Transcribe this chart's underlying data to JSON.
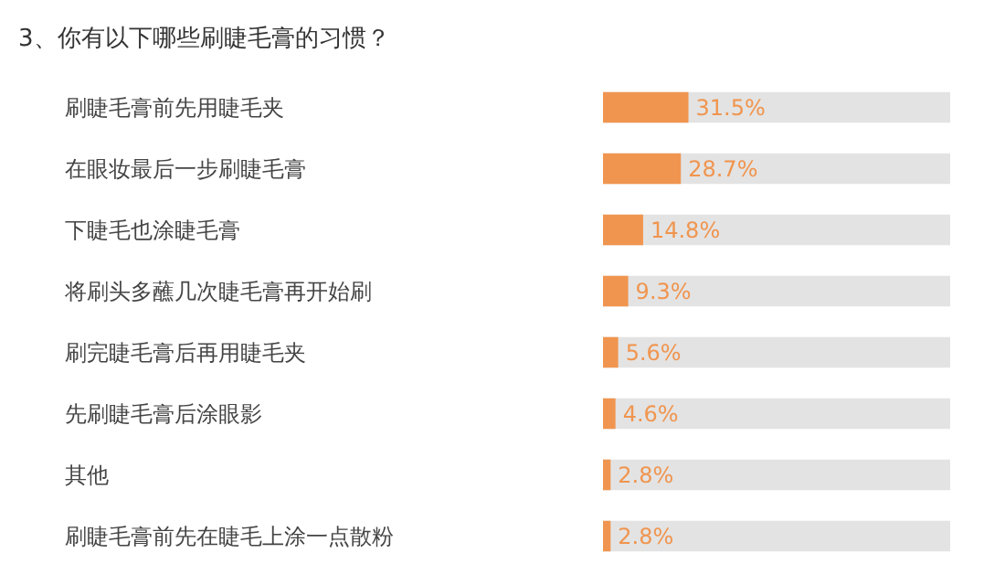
{
  "chart_data": {
    "type": "bar",
    "orientation": "horizontal",
    "title": "3、你有以下哪些刷睫毛膏的习惯？",
    "categories": [
      "刷睫毛膏前先用睫毛夹",
      "在眼妆最后一步刷睫毛膏",
      "下睫毛也涂睫毛膏",
      "将刷头多蘸几次睫毛膏再开始刷",
      "刷完睫毛膏后再用睫毛夹",
      "先刷睫毛膏后涂眼影",
      "其他",
      "刷睫毛膏前先在睫毛上涂一点散粉"
    ],
    "values": [
      31.5,
      28.7,
      14.8,
      9.3,
      5.6,
      4.6,
      2.8,
      2.8
    ],
    "value_labels": [
      "31.5%",
      "28.7%",
      "14.8%",
      "9.3%",
      "5.6%",
      "4.6%",
      "2.8%",
      "2.8%"
    ],
    "color": "#f0954f",
    "xlim": [
      0,
      128
    ],
    "tick_labels": "y",
    "grid": false
  }
}
